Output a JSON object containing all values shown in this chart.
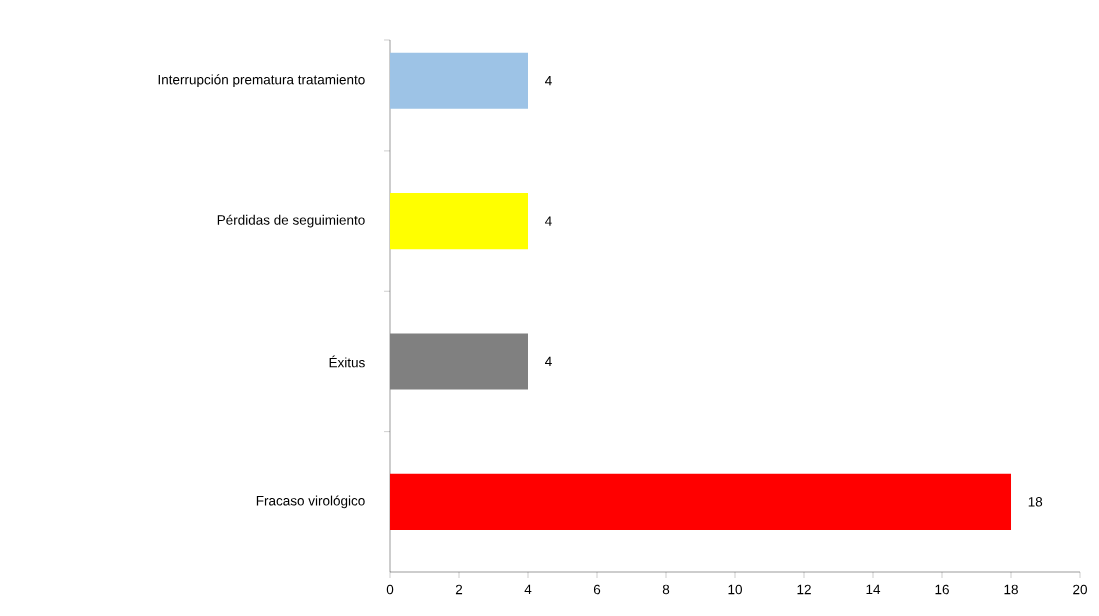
{
  "chart_data": {
    "type": "bar",
    "orientation": "horizontal",
    "categories": [
      "Interrupción prematura tratamiento",
      "Pérdidas de seguimiento",
      "Éxitus",
      "Fracaso virológico"
    ],
    "values": [
      4,
      4,
      4,
      18
    ],
    "colors": [
      "#9dc3e6",
      "#ffff00",
      "#808080",
      "#ff0000"
    ],
    "xlim": [
      0,
      20
    ],
    "xticks": [
      0,
      2,
      4,
      6,
      8,
      10,
      12,
      14,
      16,
      18,
      20
    ],
    "data_labels": true,
    "grid": false
  }
}
